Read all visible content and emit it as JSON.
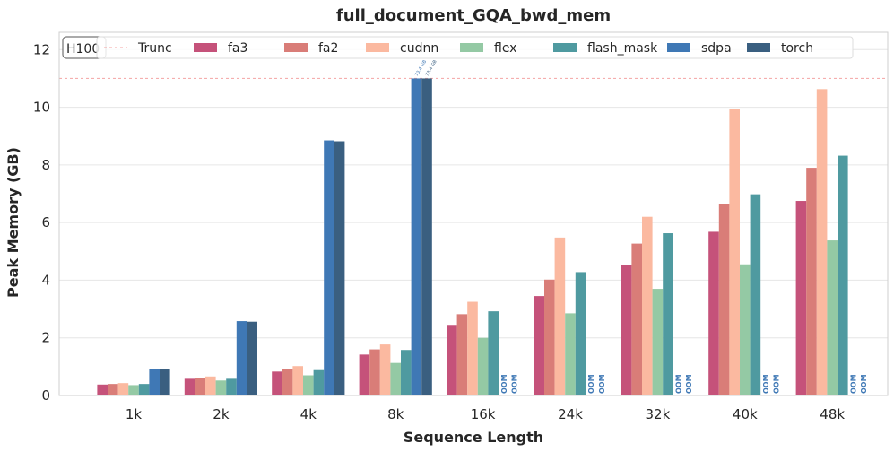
{
  "chart_data": {
    "type": "bar",
    "title": "full_document_GQA_bwd_mem",
    "xlabel": "Sequence Length",
    "ylabel": "Peak Memory (GB)",
    "ylim": [
      0,
      12.6
    ],
    "yticks": [
      0,
      2,
      4,
      6,
      8,
      10,
      12
    ],
    "grid": true,
    "categories": [
      "1k",
      "2k",
      "4k",
      "8k",
      "16k",
      "24k",
      "32k",
      "40k",
      "48k"
    ],
    "series": [
      {
        "name": "fa3",
        "color": "#c5527a",
        "values": [
          0.38,
          0.58,
          0.83,
          1.42,
          2.45,
          3.45,
          4.52,
          5.68,
          6.75
        ]
      },
      {
        "name": "fa2",
        "color": "#d97d78",
        "values": [
          0.4,
          0.62,
          0.92,
          1.6,
          2.82,
          4.02,
          5.27,
          6.65,
          7.9
        ]
      },
      {
        "name": "cudnn",
        "color": "#fbb9a0",
        "values": [
          0.43,
          0.66,
          1.02,
          1.77,
          3.25,
          5.48,
          6.2,
          9.93,
          10.63
        ]
      },
      {
        "name": "flex",
        "color": "#94c9a4",
        "values": [
          0.36,
          0.52,
          0.7,
          1.13,
          2.0,
          2.85,
          3.7,
          4.55,
          5.38
        ]
      },
      {
        "name": "flash_mask",
        "color": "#4f9aa0",
        "values": [
          0.4,
          0.58,
          0.88,
          1.58,
          2.92,
          4.28,
          5.63,
          6.98,
          8.32
        ]
      },
      {
        "name": "sdpa",
        "color": "#3f78b5",
        "values": [
          0.92,
          2.58,
          8.85,
          11.0,
          null,
          null,
          null,
          null,
          null
        ]
      },
      {
        "name": "torch",
        "color": "#3a5f80",
        "values": [
          0.92,
          2.56,
          8.82,
          11.0,
          null,
          null,
          null,
          null,
          null
        ]
      }
    ],
    "truncation": {
      "label": "Trunc",
      "value": 11.0,
      "color": "#f4a3a3"
    },
    "truncated_labels": [
      "73.4 GB",
      "73.4 GB"
    ],
    "oom_label": "OOM",
    "badge": "H100",
    "legend_position": "top"
  }
}
